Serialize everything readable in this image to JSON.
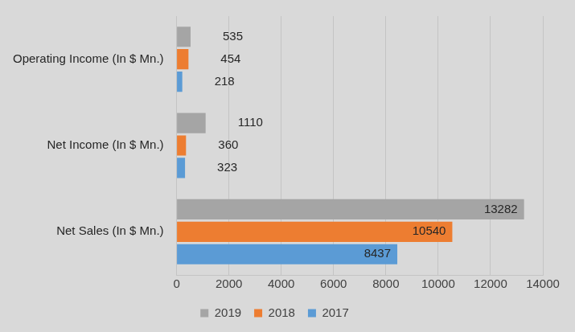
{
  "chart_data": {
    "type": "bar",
    "orientation": "horizontal",
    "categories": [
      "Operating Income (In $ Mn.)",
      "Net Income (In $ Mn.)",
      "Net Sales (In $ Mn.)"
    ],
    "series": [
      {
        "name": "2019",
        "color": "#a5a5a5",
        "values": [
          535,
          1110,
          13282
        ]
      },
      {
        "name": "2018",
        "color": "#ed7d31",
        "values": [
          454,
          360,
          10540
        ]
      },
      {
        "name": "2017",
        "color": "#5b9bd5",
        "values": [
          218,
          323,
          8437
        ]
      }
    ],
    "xlim": [
      0,
      14000
    ],
    "xticks": [
      0,
      2000,
      4000,
      6000,
      8000,
      10000,
      12000,
      14000
    ],
    "grid": true,
    "legend": "bottom",
    "data_labels": true
  }
}
